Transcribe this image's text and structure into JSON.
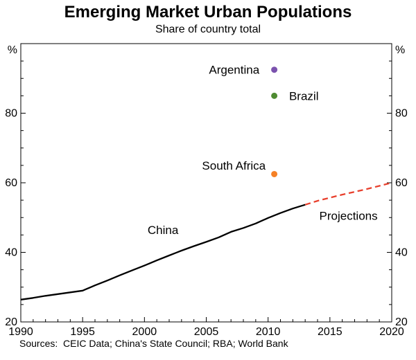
{
  "page": {
    "source_note": "Sources:  CEIC Data; China's State Council; RBA; World Bank"
  },
  "chart_data": {
    "type": "line",
    "title": "Emerging Market Urban Populations",
    "subtitle": "Share of country total",
    "unit_label": "%",
    "xlabel": "",
    "ylabel": "%",
    "xlim": [
      1990,
      2020
    ],
    "ylim": [
      20,
      100
    ],
    "x_ticks": [
      1990,
      1995,
      2000,
      2005,
      2010,
      2015,
      2020
    ],
    "x_minor_step": 1,
    "y_ticks": [
      20,
      40,
      60,
      80
    ],
    "y_minor_step": 5,
    "grid": false,
    "legend": "inline-annotations",
    "series": [
      {
        "name": "China",
        "color": "#000000",
        "style": "solid",
        "x": [
          1990,
          1991,
          1992,
          1993,
          1994,
          1995,
          1996,
          1997,
          1998,
          1999,
          2000,
          2001,
          2002,
          2003,
          2004,
          2005,
          2006,
          2007,
          2008,
          2009,
          2010,
          2011,
          2012,
          2013
        ],
        "values": [
          26.4,
          26.9,
          27.5,
          28.0,
          28.5,
          29.0,
          30.5,
          31.9,
          33.4,
          34.8,
          36.2,
          37.7,
          39.1,
          40.5,
          41.8,
          43.0,
          44.3,
          45.9,
          47.0,
          48.3,
          49.9,
          51.3,
          52.6,
          53.7
        ]
      },
      {
        "name": "China projections",
        "color": "#e8402d",
        "style": "dashed",
        "x": [
          2013,
          2014,
          2015,
          2016,
          2017,
          2018,
          2019,
          2020
        ],
        "values": [
          53.7,
          54.8,
          55.7,
          56.6,
          57.4,
          58.2,
          59.1,
          60.0
        ]
      }
    ],
    "points": [
      {
        "name": "Argentina",
        "color": "#7b52ae",
        "x": 2010.5,
        "y": 92.5
      },
      {
        "name": "Brazil",
        "color": "#4e8b31",
        "x": 2010.5,
        "y": 85.0
      },
      {
        "name": "South Africa",
        "color": "#f58025",
        "x": 2010.5,
        "y": 62.5
      }
    ],
    "annotations": [
      {
        "text": "Argentina",
        "x": 2009.3,
        "y": 92.5,
        "color": "#7b52ae",
        "anchor": "end"
      },
      {
        "text": "Brazil",
        "x": 2011.7,
        "y": 85.0,
        "color": "#4e8b31",
        "anchor": "start"
      },
      {
        "text": "South Africa",
        "x": 2009.8,
        "y": 65.0,
        "color": "#f58025",
        "anchor": "end"
      },
      {
        "text": "China",
        "x": 2001.5,
        "y": 46.5,
        "color": "#000000",
        "anchor": "middle"
      },
      {
        "text": "Projections",
        "x": 2016.5,
        "y": 50.5,
        "color": "#e8402d",
        "anchor": "middle"
      }
    ]
  }
}
